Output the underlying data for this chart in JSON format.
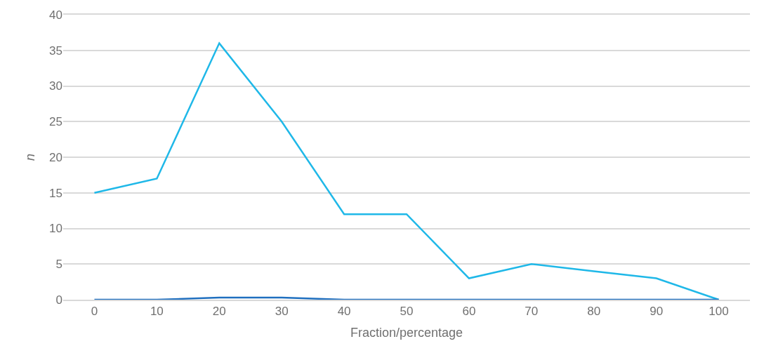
{
  "chart_data": {
    "type": "line",
    "xlabel": "Fraction/percentage",
    "ylabel": "n",
    "categories": [
      "0",
      "10",
      "20",
      "30",
      "40",
      "50",
      "60",
      "70",
      "80",
      "90",
      "100"
    ],
    "ylim": [
      0,
      40
    ],
    "yticks": [
      0,
      5,
      10,
      15,
      20,
      25,
      30,
      35,
      40
    ],
    "grid": "y",
    "marker": "none",
    "line_style": "solid",
    "series": [
      {
        "color": "#1fb8e8",
        "values": [
          15,
          17,
          36,
          25,
          12,
          12,
          3,
          5,
          4,
          3,
          0
        ]
      },
      {
        "color": "#1f6fbf",
        "values": [
          0,
          0,
          0.3,
          0.3,
          0,
          0,
          0,
          0,
          0,
          0,
          0
        ]
      }
    ]
  }
}
